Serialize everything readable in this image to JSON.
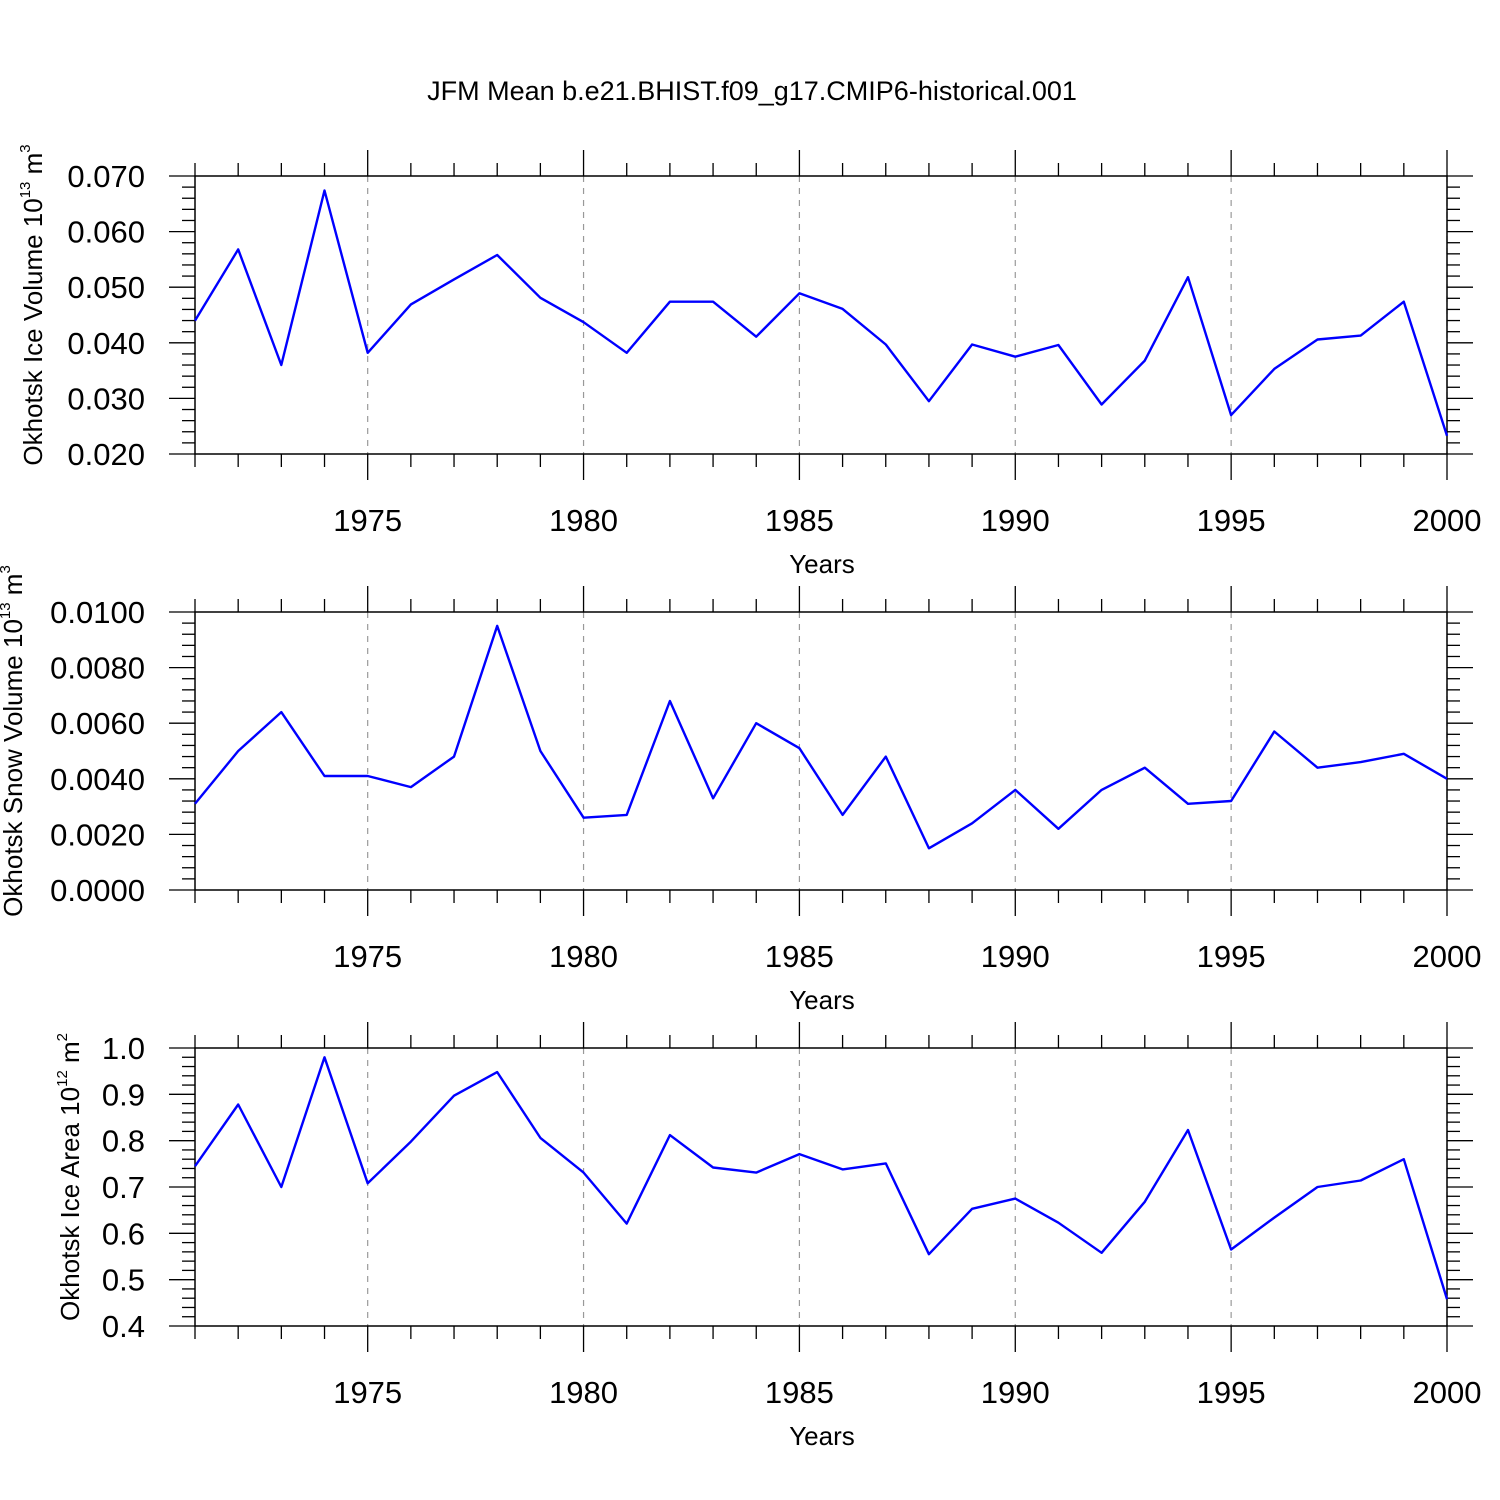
{
  "title": "JFM Mean b.e21.BHIST.f09_g17.CMIP6-historical.001",
  "chart_data": [
    {
      "type": "line",
      "ylabel": "Okhotsk Ice Volume 10",
      "ylabel_exp": "13",
      "ylabel_unit": "m",
      "ylabel_unit_exp": "3",
      "xlabel": "Years",
      "xlim": [
        1971,
        2000
      ],
      "ylim": [
        0.02,
        0.07
      ],
      "y_major_step": 0.01,
      "y_tick_decimals": 3,
      "x_ticks": [
        1975,
        1980,
        1985,
        1990,
        1995,
        2000
      ],
      "grid": "vertical-dashed",
      "color": "#0000ff",
      "x": [
        1971,
        1972,
        1973,
        1974,
        1975,
        1976,
        1977,
        1978,
        1979,
        1980,
        1981,
        1982,
        1983,
        1984,
        1985,
        1986,
        1987,
        1988,
        1989,
        1990,
        1991,
        1992,
        1993,
        1994,
        1995,
        1996,
        1997,
        1998,
        1999,
        2000
      ],
      "values": [
        0.044,
        0.0568,
        0.036,
        0.0674,
        0.0382,
        0.0469,
        0.0514,
        0.0558,
        0.0481,
        0.0437,
        0.0382,
        0.0474,
        0.0474,
        0.0411,
        0.0489,
        0.0461,
        0.0397,
        0.0295,
        0.0397,
        0.0375,
        0.0396,
        0.0289,
        0.0368,
        0.0518,
        0.027,
        0.0353,
        0.0406,
        0.0413,
        0.0474,
        0.0233
      ]
    },
    {
      "type": "line",
      "ylabel": "Okhotsk Snow Volume 10",
      "ylabel_exp": "13",
      "ylabel_unit": "m",
      "ylabel_unit_exp": "3",
      "xlabel": "Years",
      "xlim": [
        1971,
        2000
      ],
      "ylim": [
        0.0,
        0.01
      ],
      "y_major_step": 0.002,
      "y_tick_decimals": 4,
      "x_ticks": [
        1975,
        1980,
        1985,
        1990,
        1995,
        2000
      ],
      "grid": "vertical-dashed",
      "color": "#0000ff",
      "x": [
        1971,
        1972,
        1973,
        1974,
        1975,
        1976,
        1977,
        1978,
        1979,
        1980,
        1981,
        1982,
        1983,
        1984,
        1985,
        1986,
        1987,
        1988,
        1989,
        1990,
        1991,
        1992,
        1993,
        1994,
        1995,
        1996,
        1997,
        1998,
        1999,
        2000
      ],
      "values": [
        0.0031,
        0.005,
        0.0064,
        0.0041,
        0.0041,
        0.0037,
        0.0048,
        0.0095,
        0.005,
        0.0026,
        0.0027,
        0.0068,
        0.0033,
        0.006,
        0.0051,
        0.0027,
        0.0048,
        0.0015,
        0.0024,
        0.0036,
        0.0022,
        0.0036,
        0.0044,
        0.0031,
        0.0032,
        0.0057,
        0.0044,
        0.0046,
        0.0049,
        0.004
      ]
    },
    {
      "type": "line",
      "ylabel": "Okhotsk Ice Area 10",
      "ylabel_exp": "12",
      "ylabel_unit": "m",
      "ylabel_unit_exp": "2",
      "xlabel": "Years",
      "xlim": [
        1971,
        2000
      ],
      "ylim": [
        0.4,
        1.0
      ],
      "y_major_step": 0.1,
      "y_tick_decimals": 1,
      "x_ticks": [
        1975,
        1980,
        1985,
        1990,
        1995,
        2000
      ],
      "grid": "vertical-dashed",
      "color": "#0000ff",
      "x": [
        1971,
        1972,
        1973,
        1974,
        1975,
        1976,
        1977,
        1978,
        1979,
        1980,
        1981,
        1982,
        1983,
        1984,
        1985,
        1986,
        1987,
        1988,
        1989,
        1990,
        1991,
        1992,
        1993,
        1994,
        1995,
        1996,
        1997,
        1998,
        1999,
        2000
      ],
      "values": [
        0.745,
        0.878,
        0.7,
        0.98,
        0.708,
        0.798,
        0.897,
        0.948,
        0.806,
        0.731,
        0.621,
        0.812,
        0.742,
        0.731,
        0.771,
        0.738,
        0.751,
        0.555,
        0.653,
        0.675,
        0.623,
        0.558,
        0.668,
        0.823,
        0.565,
        0.634,
        0.7,
        0.714,
        0.76,
        0.458
      ]
    }
  ]
}
